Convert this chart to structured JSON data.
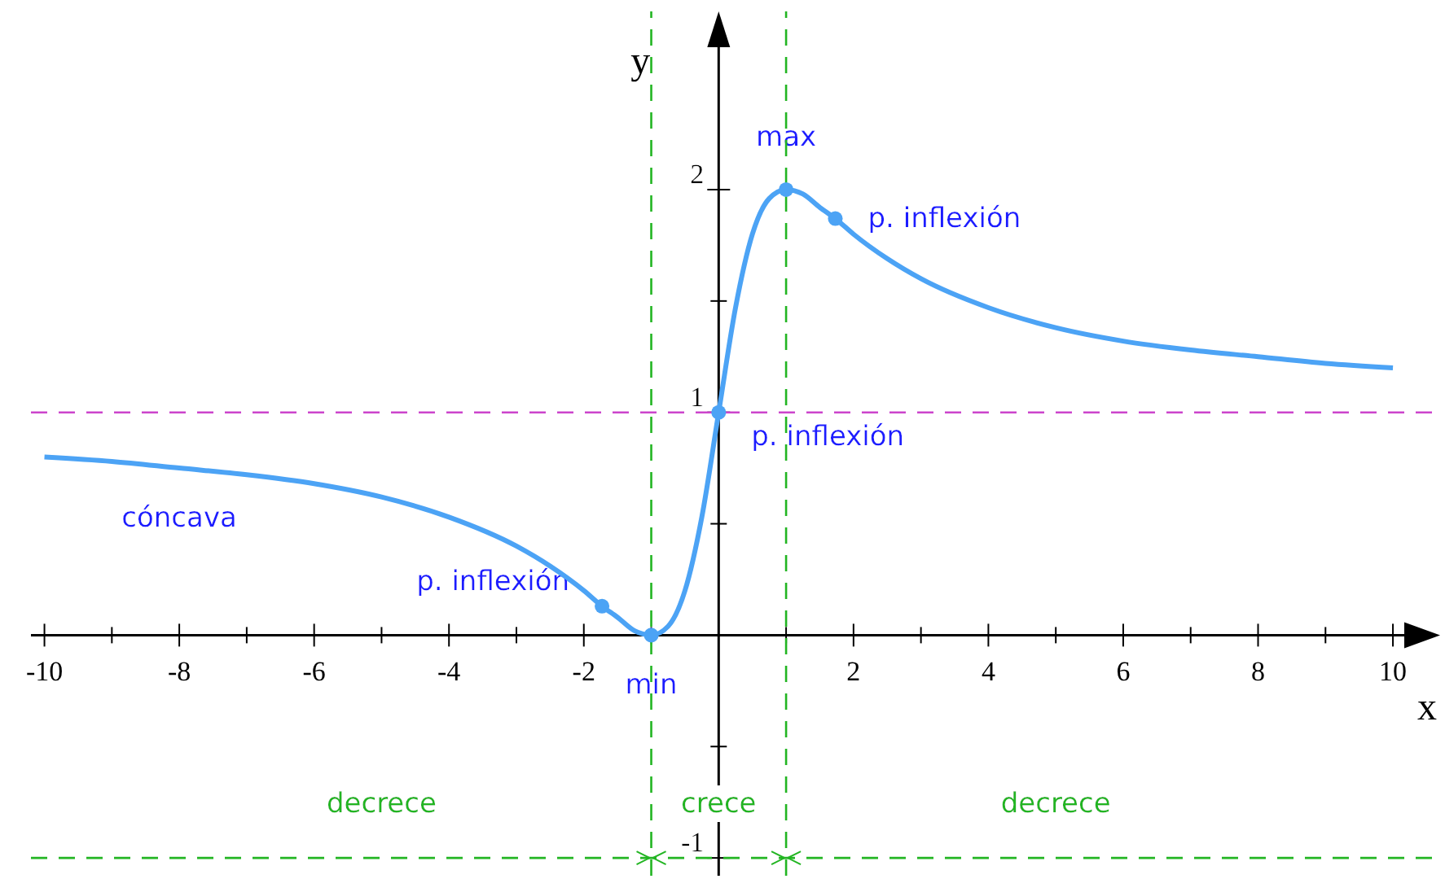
{
  "chart_data": {
    "type": "line",
    "xlabel": "x",
    "ylabel": "y",
    "xlim": [
      -10.2,
      10.7
    ],
    "ylim": [
      -1.08,
      2.8
    ],
    "xticks": [
      -10,
      {
        "value": -9,
        "label": null
      },
      -8,
      {
        "value": -7,
        "label": null
      },
      -6,
      {
        "value": -5,
        "label": null
      },
      -4,
      {
        "value": -3,
        "label": null
      },
      -2,
      {
        "value": -1,
        "label": null
      },
      {
        "value": 1,
        "label": null
      },
      2,
      {
        "value": 3,
        "label": null
      },
      4,
      {
        "value": 5,
        "label": null
      },
      6,
      {
        "value": 7,
        "label": null
      },
      8,
      {
        "value": 9,
        "label": null
      },
      10
    ],
    "yticks": [
      -1,
      {
        "value": -0.5,
        "label": null
      },
      {
        "value": 0.5,
        "label": null
      },
      1,
      {
        "value": 1.5,
        "label": null
      },
      2
    ],
    "grid": false,
    "legend": false,
    "x": [
      -10,
      -9,
      -8,
      -7,
      -6,
      -5,
      -4,
      -3,
      -2.5,
      -2,
      -1.73,
      -1.5,
      -1.25,
      -1,
      -0.75,
      -0.5,
      -0.25,
      0,
      0.25,
      0.5,
      0.75,
      1,
      1.25,
      1.5,
      1.73,
      2,
      2.5,
      3,
      4,
      5,
      6,
      7,
      8,
      9,
      10
    ],
    "series": [
      {
        "color": "#4ca3f5",
        "values": [
          0.8,
          0.78,
          0.75,
          0.72,
          0.68,
          0.62,
          0.53,
          0.4,
          0.31,
          0.2,
          0.13,
          0.08,
          0.02,
          0,
          0.04,
          0.2,
          0.53,
          1,
          1.47,
          1.8,
          1.96,
          2,
          1.98,
          1.92,
          1.87,
          1.8,
          1.69,
          1.6,
          1.47,
          1.38,
          1.32,
          1.28,
          1.25,
          1.22,
          1.2
        ]
      },
      {
        "type": "scatter",
        "color": "#4ca3f5",
        "x": [
          -1.73,
          -1,
          0,
          1,
          1.73
        ],
        "values": [
          0.13,
          0,
          1,
          2,
          1.87
        ]
      }
    ],
    "ref_lines": [
      {
        "axis": "y",
        "value": 1,
        "color": "#cc44cc",
        "line_style": "dashed"
      },
      {
        "axis": "x",
        "value": -1,
        "color": "#22b522",
        "line_style": "dashed"
      },
      {
        "axis": "x",
        "value": 1,
        "color": "#22b522",
        "line_style": "dashed"
      },
      {
        "axis": "y",
        "value": -1,
        "color": "#22b522",
        "line_style": "dashed"
      }
    ],
    "annotations": [
      {
        "text": "max",
        "x": 1,
        "y": 2
      },
      {
        "text": "p. inflexión",
        "x": 1.73,
        "y": 1.87
      },
      {
        "text": "p. inflexión",
        "x": 0,
        "y": 1
      },
      {
        "text": "p. inflexión",
        "x": -1.73,
        "y": 0.13
      },
      {
        "text": "min",
        "x": -1,
        "y": 0
      },
      "cóncava",
      "decrece",
      "crece",
      "decrece"
    ]
  }
}
